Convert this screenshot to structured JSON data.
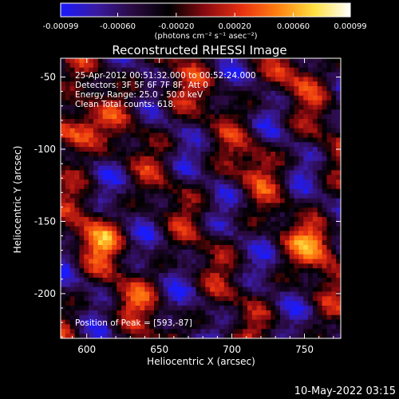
{
  "colorbar": {
    "tick_labels": [
      "-0.00099",
      "-0.00060",
      "-0.00020",
      "0.00020",
      "0.00060",
      "0.00099"
    ],
    "tick_values": [
      -0.00099,
      -0.0006,
      -0.0002,
      0.0002,
      0.0006,
      0.00099
    ],
    "range": [
      -0.00099,
      0.00099
    ],
    "unit_label": "(photons cm⁻² s⁻¹ asec⁻²)"
  },
  "chart_data": {
    "type": "heatmap",
    "title": "Reconstructed RHESSI Image",
    "xlabel": "Heliocentric X (arcsec)",
    "ylabel": "Heliocentric Y (arcsec)",
    "xlim": [
      582,
      775
    ],
    "ylim": [
      -231,
      -37
    ],
    "x_ticks": [
      600,
      650,
      700,
      750
    ],
    "y_ticks": [
      -50,
      -100,
      -150,
      -200
    ],
    "colormap_stops": [
      "#1a1aff",
      "#3a1aa0",
      "#2a0a40",
      "#000000",
      "#8a0a10",
      "#e83010",
      "#ff8010",
      "#ffe040",
      "#ffffff"
    ],
    "bright_sources": [
      {
        "x": 593,
        "y": -87,
        "level": 0.00099
      },
      {
        "x": 606,
        "y": -163,
        "level": 0.0006
      },
      {
        "x": 760,
        "y": -165,
        "level": 0.0007
      },
      {
        "x": 660,
        "y": -62,
        "level": 0.0003
      },
      {
        "x": 745,
        "y": -52,
        "level": 0.0003
      },
      {
        "x": 630,
        "y": -205,
        "level": 0.0003
      },
      {
        "x": 715,
        "y": -110,
        "level": 0.0003
      }
    ],
    "annotations": [
      "25-Apr-2012 00:51:32.000 to 00:52:24.000",
      "Detectors: 3F 5F 6F 7F 8F, Att 0",
      "Energy Range: 25.0 - 50.0 keV",
      "Clean    Total counts: 618.",
      "Position of Peak = [593,-87]"
    ]
  },
  "footer_timestamp": "10-May-2022 03:15"
}
